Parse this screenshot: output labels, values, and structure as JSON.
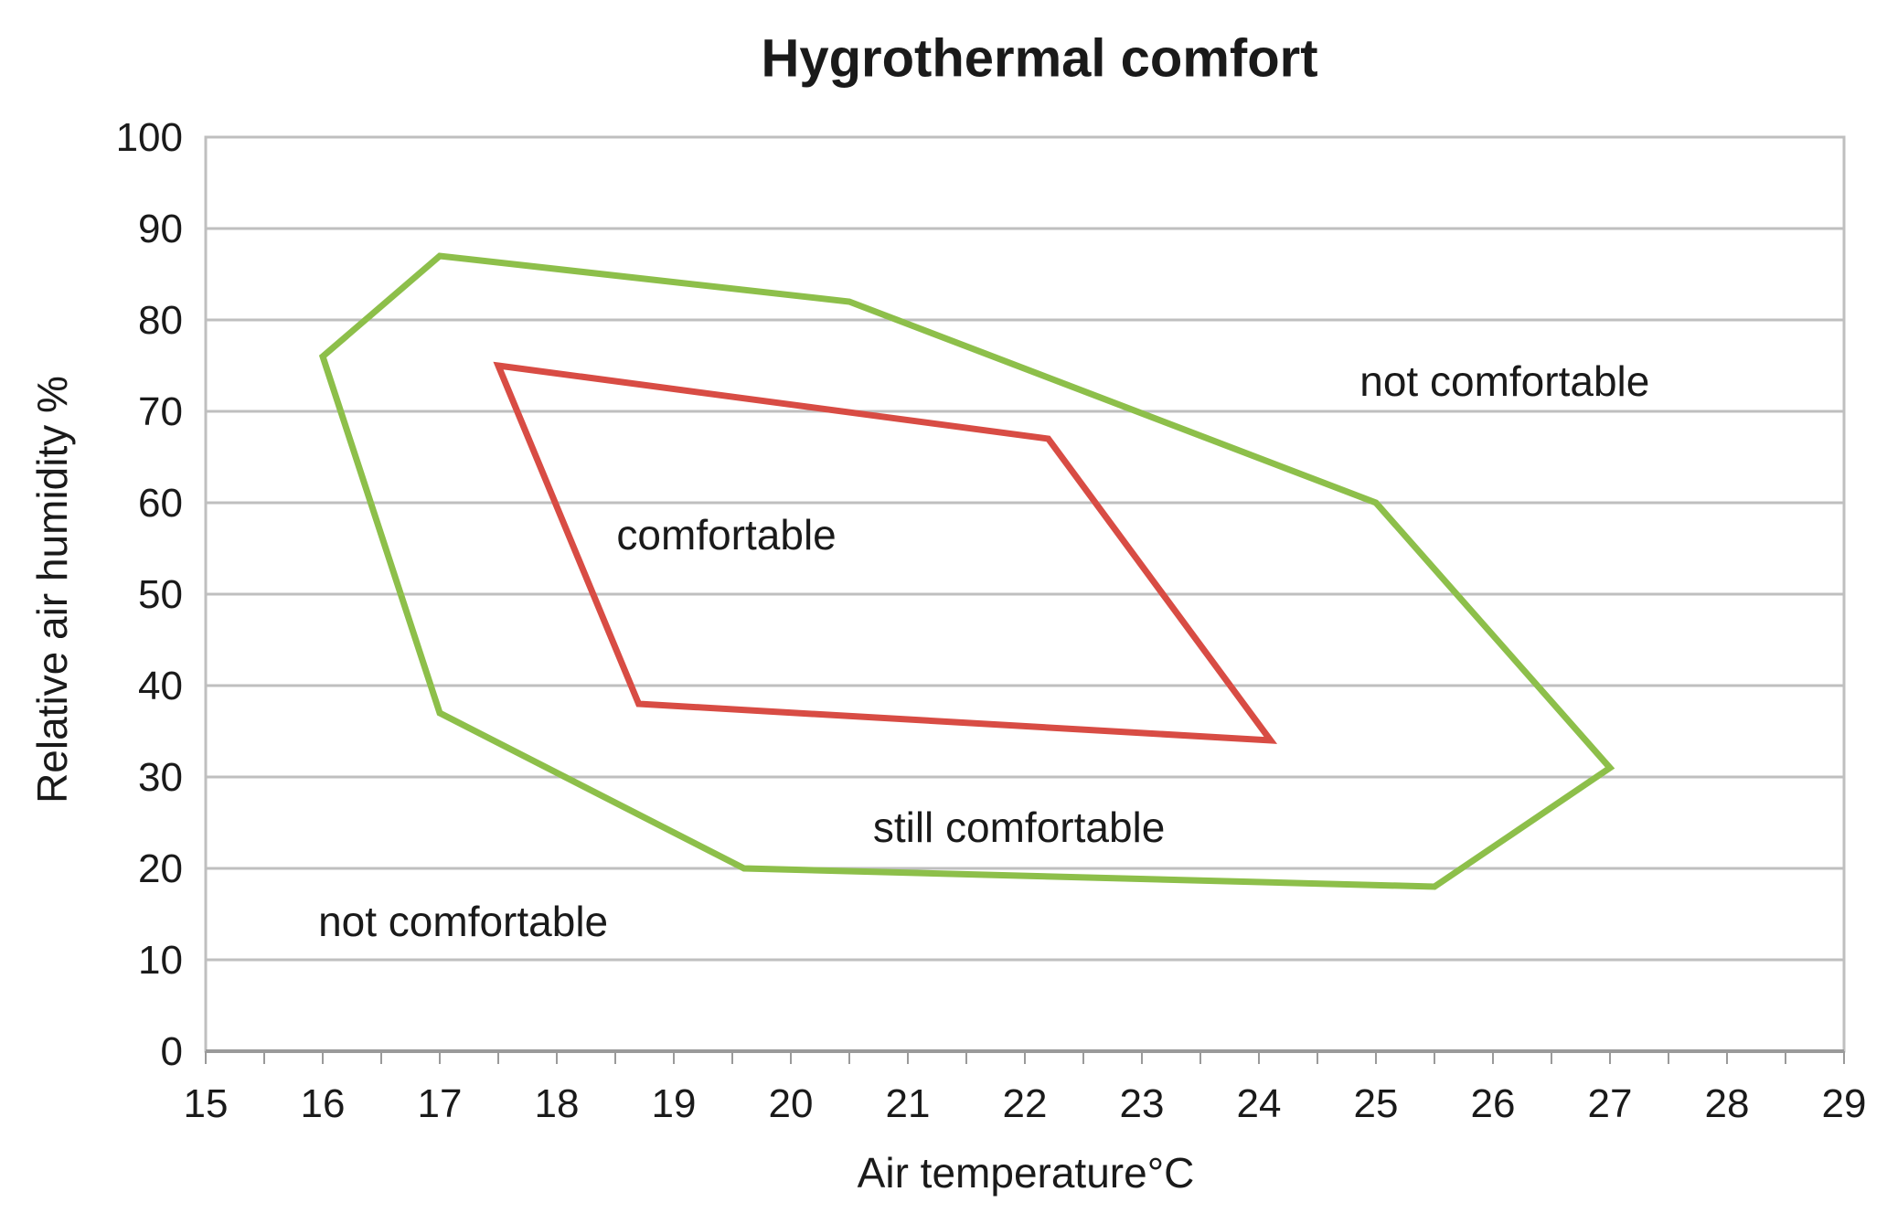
{
  "chart_data": {
    "type": "line",
    "title": "Hygrothermal comfort",
    "xlabel": "Air temperature°C",
    "ylabel": "Relative air humidity %",
    "xlim": [
      15,
      29
    ],
    "ylim": [
      0,
      100
    ],
    "x_ticks": [
      15,
      16,
      17,
      18,
      19,
      20,
      21,
      22,
      23,
      24,
      25,
      26,
      27,
      28,
      29
    ],
    "y_ticks": [
      0,
      10,
      20,
      30,
      40,
      50,
      60,
      70,
      80,
      90,
      100
    ],
    "x_minor_tick_step": 0.5,
    "grid": "horizontal",
    "legend": "none",
    "series": [
      {
        "name": "still comfortable boundary",
        "color": "#8dbf4a",
        "closed": true,
        "points": [
          [
            16,
            76
          ],
          [
            17,
            87
          ],
          [
            20.5,
            82
          ],
          [
            25,
            60
          ],
          [
            27,
            31
          ],
          [
            25.5,
            18
          ],
          [
            19.6,
            20
          ],
          [
            17,
            37
          ]
        ]
      },
      {
        "name": "comfortable boundary",
        "color": "#d84c44",
        "closed": true,
        "points": [
          [
            17.5,
            75
          ],
          [
            22.2,
            67
          ],
          [
            24.1,
            34
          ],
          [
            18.7,
            38
          ]
        ]
      }
    ],
    "annotations": [
      {
        "text": "not comfortable",
        "x": 26.1,
        "y": 73.3
      },
      {
        "text": "comfortable",
        "x": 19.45,
        "y": 56.5
      },
      {
        "text": "still comfortable",
        "x": 21.95,
        "y": 24.5
      },
      {
        "text": "not comfortable",
        "x": 17.2,
        "y": 14.2
      }
    ],
    "colors": {
      "grid": "#bfbfbf",
      "axis": "#9a9a9a",
      "text": "#1a1a1a",
      "background": "#ffffff"
    }
  }
}
